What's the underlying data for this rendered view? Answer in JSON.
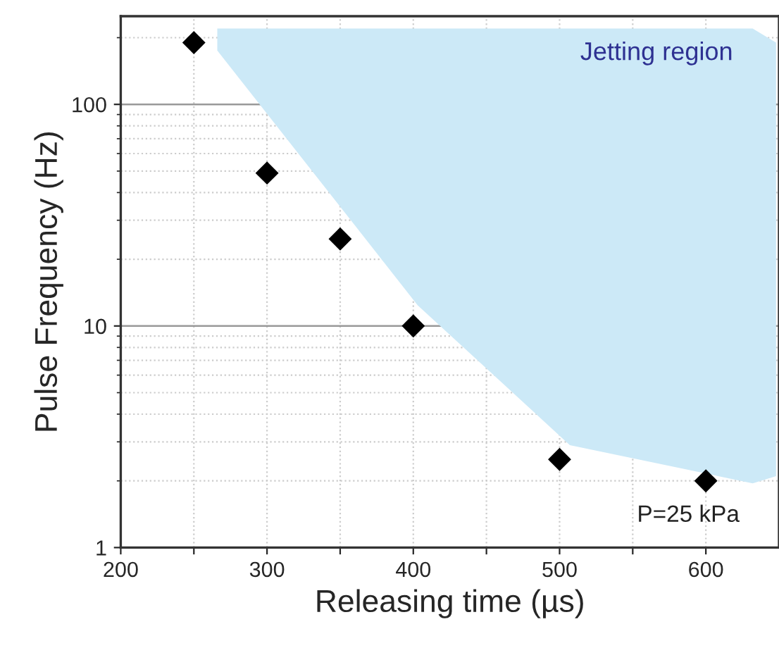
{
  "chart_data": {
    "type": "scatter",
    "xlabel": "Releasing time (µs)",
    "ylabel": "Pulse Frequency (Hz)",
    "x": [
      250,
      300,
      350,
      400,
      500,
      600
    ],
    "series": [
      {
        "color": "#000000",
        "values": [
          190,
          49,
          24.7,
          10,
          2.5,
          2.0
        ]
      },
      {
        "type": "line",
        "color": "#cce9f7",
        "x": [
          266,
          403,
          507,
          632,
          648
        ],
        "values": [
          null,
          null,
          null,
          null,
          null
        ],
        "lower": [
          175,
          12.4,
          2.9,
          1.95,
          2.1
        ],
        "upper": [
          220,
          220,
          220,
          220,
          190
        ]
      }
    ],
    "marker": "diamond",
    "annotations": [
      "Jetting region",
      "P=25 kPa"
    ],
    "log": "y",
    "xlim": [
      200,
      650
    ],
    "ylim": [
      1,
      250
    ],
    "xticks": [
      200,
      {
        "value": 250,
        "label": null
      },
      300,
      {
        "value": 350,
        "label": null
      },
      400,
      {
        "value": 450,
        "label": null
      },
      500,
      {
        "value": 550,
        "label": null
      },
      600
    ],
    "yticks": [
      1,
      10,
      100
    ],
    "grid": true
  }
}
